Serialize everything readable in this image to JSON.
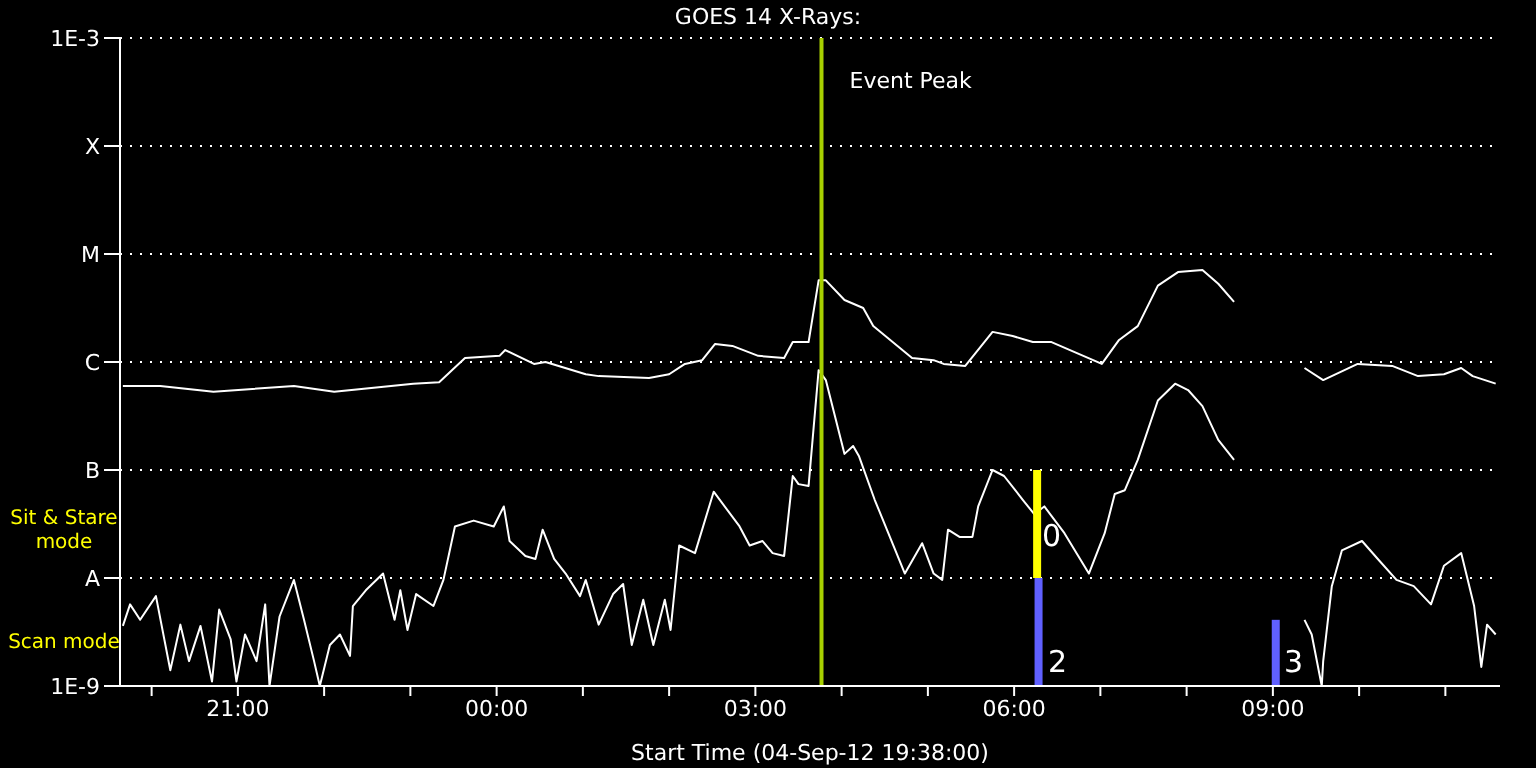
{
  "chart_data": {
    "type": "line",
    "title": "GOES 14 X-Rays:",
    "xlabel": "Start Time (04-Sep-12 19:38:00)",
    "xlim": [
      "--09-04T19:38",
      "--09-05T11:38"
    ],
    "xticks": [
      {
        "value": "--09-04T20:00",
        "label": null
      },
      {
        "value": "--09-04T21:00",
        "label": "21:00"
      },
      {
        "value": "--09-04T22:00",
        "label": null
      },
      {
        "value": "--09-04T23:00",
        "label": null
      },
      {
        "value": "--09-05T00:00",
        "label": "00:00"
      },
      {
        "value": "--09-05T01:00",
        "label": null
      },
      {
        "value": "--09-05T02:00",
        "label": null
      },
      {
        "value": "--09-05T03:00",
        "label": "03:00"
      },
      {
        "value": "--09-05T04:00",
        "label": null
      },
      {
        "value": "--09-05T05:00",
        "label": null
      },
      {
        "value": "--09-05T06:00",
        "label": "06:00"
      },
      {
        "value": "--09-05T07:00",
        "label": null
      },
      {
        "value": "--09-05T08:00",
        "label": null
      },
      {
        "value": "--09-05T09:00",
        "label": "09:00"
      },
      {
        "value": "--09-05T10:00",
        "label": null
      },
      {
        "value": "--09-05T11:00",
        "label": null
      }
    ],
    "ylim": [
      1e-09,
      0.001
    ],
    "yticks": [
      {
        "value": 1e-09,
        "label": "1E-9"
      },
      {
        "value": 1e-08,
        "label": "A"
      },
      {
        "value": 1e-07,
        "label": "B"
      },
      {
        "value": 1e-06,
        "label": "C"
      },
      {
        "value": 1e-05,
        "label": "M"
      },
      {
        "value": 0.0001,
        "label": "X"
      },
      {
        "value": 0.001,
        "label": "1E-3"
      }
    ],
    "log": true,
    "grid": "y",
    "marker": "none",
    "line_style": "solid",
    "series": [
      {
        "color": "#ffffff",
        "x": [
          "--09-04T19:40",
          "--09-04T20:06",
          "--09-04T20:43",
          "--09-04T21:39",
          "--09-04T22:07",
          "--09-04T23:02",
          "--09-04T23:20",
          "--09-04T23:38",
          "--09-05T00:02",
          "--09-05T00:06",
          "--09-05T00:26",
          "--09-05T00:34",
          "--09-05T01:02",
          "--09-05T01:11",
          "--09-05T01:46",
          "--09-05T02:00",
          "--09-05T02:11",
          "--09-05T02:23",
          "--09-05T02:32",
          "--09-05T02:44",
          "--09-05T03:02",
          "--09-05T03:20",
          "--09-05T03:26",
          "--09-05T03:37",
          "--09-05T03:44",
          "--09-05T03:49",
          "--09-05T04:02",
          "--09-05T04:15",
          "--09-05T04:22",
          "--09-05T04:49",
          "--09-05T05:04",
          "--09-05T05:11",
          "--09-05T05:26",
          "--09-05T05:45",
          "--09-05T05:59",
          "--09-05T06:13",
          "--09-05T06:26",
          "--09-05T06:55",
          "--09-05T07:01",
          "--09-05T07:13",
          "--09-05T07:26",
          "--09-05T07:40",
          "--09-05T07:54",
          "--09-05T08:11",
          "--09-05T08:22",
          "--09-05T08:33",
          "--09-05T09:00",
          "--09-05T09:22",
          "--09-05T09:35",
          "--09-05T09:59",
          "--09-05T10:23",
          "--09-05T10:41",
          "--09-05T10:59",
          "--09-05T11:11",
          "--09-05T11:19",
          "--09-05T11:35"
        ],
        "values": [
          6e-07,
          6e-07,
          5.3e-07,
          6e-07,
          5.3e-07,
          6.3e-07,
          6.5e-07,
          1.09e-06,
          1.14e-06,
          1.29e-06,
          9.6e-07,
          1e-06,
          7.7e-07,
          7.4e-07,
          7.1e-07,
          7.7e-07,
          9.6e-07,
          1.04e-06,
          1.47e-06,
          1.41e-06,
          1.14e-06,
          1.09e-06,
          1.53e-06,
          1.53e-06,
          5.7e-06,
          5.7e-06,
          3.75e-06,
          3.16e-06,
          2.15e-06,
          1.09e-06,
          1.04e-06,
          9.6e-07,
          9.2e-07,
          1.9e-06,
          1.74e-06,
          1.53e-06,
          1.53e-06,
          1.04e-06,
          9.6e-07,
          1.6e-06,
          2.15e-06,
          5.1e-06,
          6.8e-06,
          7.1e-06,
          5.3e-06,
          3.6e-06,
          null,
          8.8e-07,
          6.8e-07,
          9.6e-07,
          9.2e-07,
          7.4e-07,
          7.7e-07,
          8.8e-07,
          7.4e-07,
          6.3e-07
        ]
      },
      {
        "color": "#ffffff",
        "x": [
          "--09-04T19:40",
          "--09-04T19:45",
          "--09-04T19:52",
          "--09-04T20:03",
          "--09-04T20:13",
          "--09-04T20:20",
          "--09-04T20:26",
          "--09-04T20:34",
          "--09-04T20:42",
          "--09-04T20:47",
          "--09-04T20:55",
          "--09-04T20:59",
          "--09-04T21:05",
          "--09-04T21:13",
          "--09-04T21:19",
          "--09-04T21:22",
          "--09-04T21:29",
          "--09-04T21:39",
          "--09-04T21:46",
          "--09-04T21:53",
          "--09-04T21:57",
          "--09-04T22:04",
          "--09-04T22:11",
          "--09-04T22:18",
          "--09-04T22:20",
          "--09-04T22:29",
          "--09-04T22:41",
          "--09-04T22:49",
          "--09-04T22:53",
          "--09-04T22:58",
          "--09-04T23:04",
          "--09-04T23:16",
          "--09-04T23:23",
          "--09-04T23:31",
          "--09-04T23:44",
          "--09-04T23:58",
          "--09-05T00:05",
          "--09-05T00:09",
          "--09-05T00:20",
          "--09-05T00:27",
          "--09-05T00:32",
          "--09-05T00:40",
          "--09-05T00:48",
          "--09-05T00:58",
          "--09-05T01:02",
          "--09-05T01:11",
          "--09-05T01:21",
          "--09-05T01:28",
          "--09-05T01:34",
          "--09-05T01:42",
          "--09-05T01:49",
          "--09-05T01:57",
          "--09-05T02:01",
          "--09-05T02:07",
          "--09-05T02:18",
          "--09-05T02:31",
          "--09-05T02:49",
          "--09-05T02:56",
          "--09-05T03:05",
          "--09-05T03:12",
          "--09-05T03:20",
          "--09-05T03:26",
          "--09-05T03:30",
          "--09-05T03:37",
          "--09-05T03:44",
          "--09-05T03:49",
          "--09-05T04:02",
          "--09-05T04:08",
          "--09-05T04:12",
          "--09-05T04:23",
          "--09-05T04:44",
          "--09-05T04:56",
          "--09-05T05:04",
          "--09-05T05:10",
          "--09-05T05:14",
          "--09-05T05:22",
          "--09-05T05:31",
          "--09-05T05:35",
          "--09-05T05:45",
          "--09-05T05:53",
          "--09-05T06:06",
          "--09-05T06:14",
          "--09-05T06:21",
          "--09-05T06:35",
          "--09-05T06:52",
          "--09-05T07:03",
          "--09-05T07:10",
          "--09-05T07:17",
          "--09-05T07:26",
          "--09-05T07:40",
          "--09-05T07:52",
          "--09-05T08:01",
          "--09-05T08:11",
          "--09-05T08:22",
          "--09-05T08:33",
          "--09-05T09:00",
          "--09-05T09:22",
          "--09-05T09:27",
          "--09-05T09:34",
          "--09-05T09:35",
          "--09-05T09:41",
          "--09-05T09:48",
          "--09-05T10:02",
          "--09-05T10:13",
          "--09-05T10:26",
          "--09-05T10:38",
          "--09-05T10:50",
          "--09-05T10:59",
          "--09-05T11:11",
          "--09-05T11:20",
          "--09-05T11:25",
          "--09-05T11:29",
          "--09-05T11:35"
        ],
        "values": [
          3.6e-09,
          5.7e-09,
          4.1e-09,
          6.8e-09,
          1.4e-09,
          3.7e-09,
          1.7e-09,
          3.6e-09,
          1.1e-09,
          5.1e-09,
          2.7e-09,
          1.1e-09,
          3e-09,
          1.7e-09,
          5.7e-09,
          1e-09,
          4.4e-09,
          9.6e-09,
          4.1e-09,
          1.7e-09,
          1e-09,
          2.4e-09,
          3e-09,
          1.9e-09,
          5.5e-09,
          7.7e-09,
          1.1e-08,
          4.1e-09,
          7.7e-09,
          3.3e-09,
          7.1e-09,
          5.5e-09,
          9.6e-09,
          3e-08,
          3.4e-08,
          3e-08,
          4.6e-08,
          2.2e-08,
          1.6e-08,
          1.5e-08,
          2.8e-08,
          1.5e-08,
          1.1e-08,
          6.8e-09,
          9.6e-09,
          3.7e-09,
          7.1e-09,
          8.8e-09,
          2.4e-09,
          6.3e-09,
          2.4e-09,
          6.3e-09,
          3.3e-09,
          2e-08,
          1.7e-08,
          6.3e-08,
          3e-08,
          2e-08,
          2.2e-08,
          1.7e-08,
          1.6e-08,
          8.8e-08,
          7.4e-08,
          7.1e-08,
          8.4e-07,
          6.8e-07,
          1.41e-07,
          1.67e-07,
          1.35e-07,
          5.3e-08,
          1.1e-08,
          2.1e-08,
          1.1e-08,
          9.6e-09,
          2.8e-08,
          2.4e-08,
          2.4e-08,
          4.6e-08,
          1e-07,
          8.8e-08,
          5.3e-08,
          3.9e-08,
          4.6e-08,
          2.6e-08,
          1.1e-08,
          2.6e-08,
          6e-08,
          6.5e-08,
          1.24e-07,
          4.4e-07,
          6.3e-07,
          5.5e-07,
          3.9e-07,
          1.9e-07,
          1.24e-07,
          null,
          4.1e-09,
          3e-09,
          1e-09,
          1.7e-09,
          8.4e-09,
          1.8e-08,
          2.2e-08,
          1.5e-08,
          9.6e-09,
          8.4e-09,
          5.7e-09,
          1.3e-08,
          1.7e-08,
          5.5e-09,
          1.5e-09,
          3.7e-09,
          3e-09
        ]
      },
      {
        "color": "#ffff00",
        "x": [
          "--09-05T06:16",
          "--09-05T06:16"
        ],
        "values": [
          1e-07,
          1e-08
        ]
      },
      {
        "color": "#6060ff",
        "x": [
          "--09-05T06:17",
          "--09-05T06:17"
        ],
        "values": [
          1e-08,
          1e-09
        ]
      },
      {
        "color": "#6060ff",
        "x": [
          "--09-05T09:02",
          "--09-05T09:02"
        ],
        "values": [
          4.1e-09,
          1e-09
        ]
      }
    ],
    "ref_lines": [
      {
        "axis": "x",
        "value": "--09-05T03:46",
        "label": "Event Peak",
        "color": "#a8d000"
      }
    ],
    "annotations": [
      "Sit & Stare mode",
      "Scan mode",
      "0",
      "2",
      "3"
    ]
  }
}
